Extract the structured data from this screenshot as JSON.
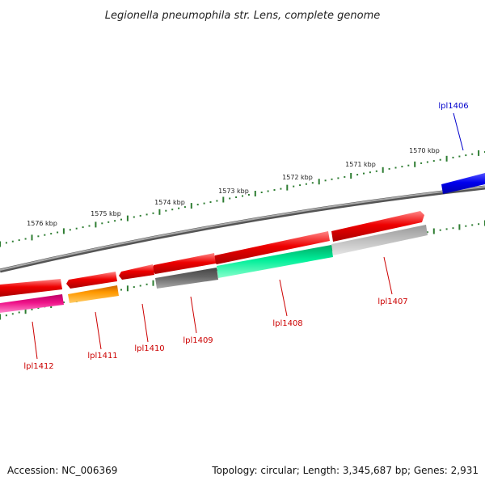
{
  "title": "Legionella pneumophila str. Lens, complete genome",
  "footer": {
    "accession": "Accession: NC_006369",
    "summary": "Topology: circular; Length: 3,345,687 bp; Genes: 2,931"
  },
  "scale_labels": [
    "1576 kbp",
    "1575 kbp",
    "1574 kbp",
    "1573 kbp",
    "1572 kbp",
    "1571 kbp",
    "1570 kbp"
  ],
  "gene_labels": [
    {
      "text": "lpl1406",
      "color": "#0000cc"
    },
    {
      "text": "lpl1407",
      "color": "#cc0000"
    },
    {
      "text": "lpl1408",
      "color": "#cc0000"
    },
    {
      "text": "lpl1409",
      "color": "#cc0000"
    },
    {
      "text": "lpl1410",
      "color": "#cc0000"
    },
    {
      "text": "lpl1411",
      "color": "#cc0000"
    },
    {
      "text": "lpl1412",
      "color": "#cc0000"
    }
  ],
  "colors": {
    "cds_red": "#ee0000",
    "blue": "#0000ee",
    "orange": "#ff9900",
    "pink": "#ee1188",
    "green": "#00ee99",
    "dark_gray": "#666666",
    "light_gray": "#bbbbbb",
    "backbone": "#888888",
    "tick_green": "#2e7d32"
  }
}
